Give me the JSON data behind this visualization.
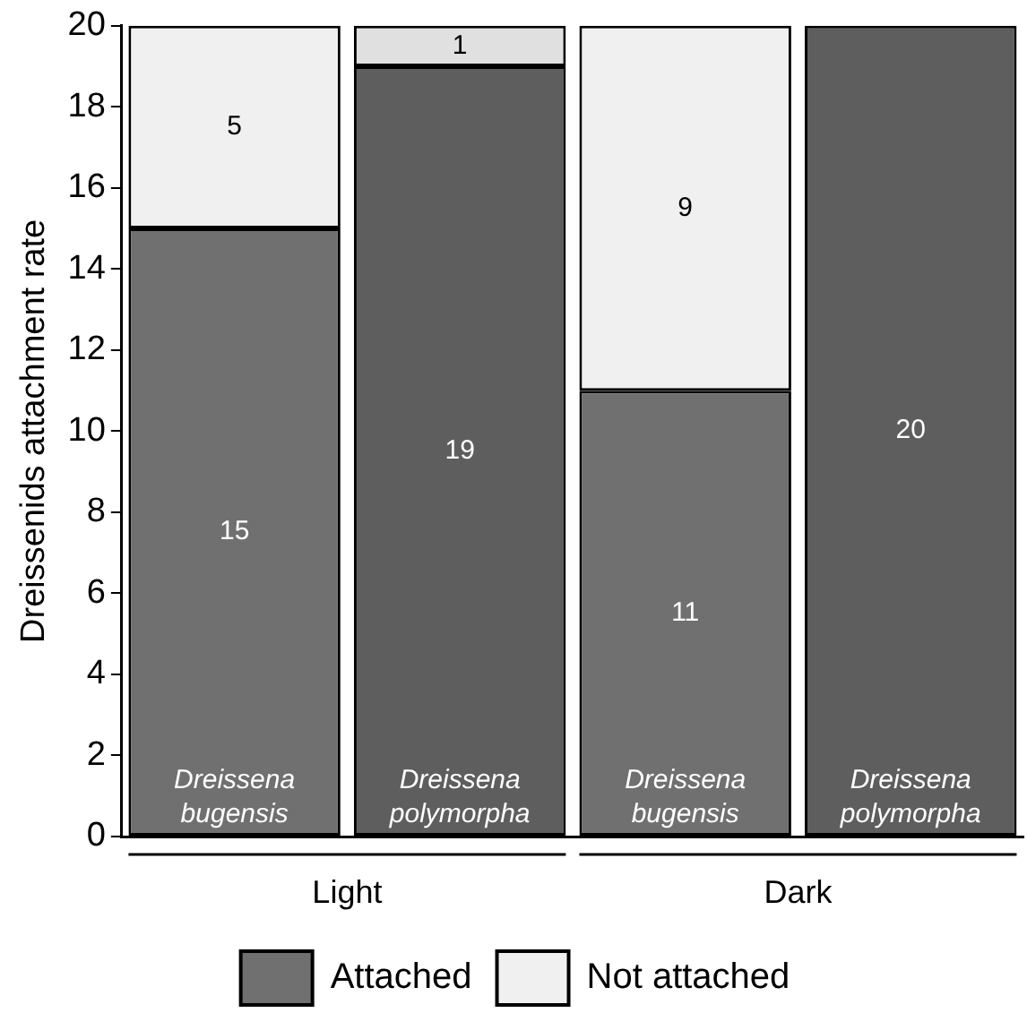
{
  "chart_data": {
    "type": "bar",
    "stacked": true,
    "ylabel": "Dreissenids attachment rate",
    "categories": [
      "Dreissena bugensis",
      "Dreissena polymorpha",
      "Dreissena bugensis",
      "Dreissena polymorpha"
    ],
    "series": [
      {
        "name": "Attached",
        "color": "#707070",
        "colors": [
          "#707070",
          "#5e5e5e",
          "#707070",
          "#5e5e5e"
        ],
        "values": [
          15,
          19,
          11,
          20
        ],
        "value_labels": [
          "15",
          "19",
          "11",
          "20"
        ]
      },
      {
        "name": "Not attached",
        "color": "#f0f0f0",
        "colors": [
          "#f0f0f0",
          "#e0e0e0",
          "#f0f0f0",
          "#e0e0e0"
        ],
        "values": [
          5,
          1,
          9,
          0
        ],
        "value_labels": [
          "5",
          "1",
          "9",
          null
        ]
      }
    ],
    "ylim": [
      0,
      20
    ],
    "yticks": [
      0,
      2,
      4,
      6,
      8,
      10,
      12,
      14,
      16,
      18,
      20
    ],
    "grid": false,
    "legend": "bottom",
    "annotations": [
      "Light",
      "Dark"
    ]
  }
}
